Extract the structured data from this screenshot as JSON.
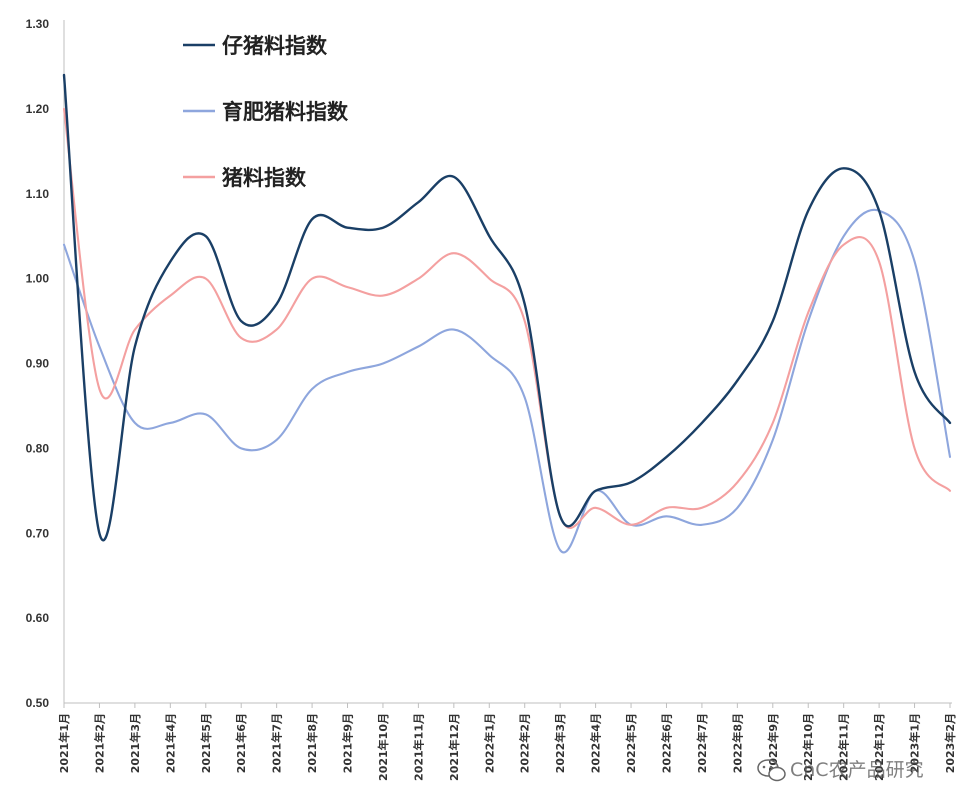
{
  "chart_data": {
    "type": "line",
    "title": "",
    "xlabel": "",
    "ylabel": "",
    "ylim": [
      0.5,
      1.3
    ],
    "yticks": [
      "0.50",
      "0.60",
      "0.70",
      "0.80",
      "0.90",
      "1.00",
      "1.10",
      "1.20",
      "1.30"
    ],
    "grid": false,
    "legend_position": "top-left",
    "categories": [
      "2021年1月",
      "2021年2月",
      "2021年3月",
      "2021年4月",
      "2021年5月",
      "2021年6月",
      "2021年7月",
      "2021年8月",
      "2021年9月",
      "2021年10月",
      "2021年11月",
      "2021年12月",
      "2022年1月",
      "2022年2月",
      "2022年3月",
      "2022年4月",
      "2022年5月",
      "2022年6月",
      "2022年7月",
      "2022年8月",
      "2022年9月",
      "2022年10月",
      "2022年11月",
      "2022年12月",
      "2023年1月",
      "2023年2月"
    ],
    "series": [
      {
        "name": "仔猪料指数",
        "color": "#1a3f66",
        "values": [
          1.24,
          0.7,
          0.92,
          1.02,
          1.05,
          0.95,
          0.97,
          1.07,
          1.06,
          1.06,
          1.09,
          1.12,
          1.05,
          0.97,
          0.72,
          0.75,
          0.76,
          0.79,
          0.83,
          0.88,
          0.95,
          1.08,
          1.13,
          1.08,
          0.89,
          0.83
        ]
      },
      {
        "name": "育肥猪料指数",
        "color": "#8ea6dd",
        "values": [
          1.04,
          0.92,
          0.83,
          0.83,
          0.84,
          0.8,
          0.81,
          0.87,
          0.89,
          0.9,
          0.92,
          0.94,
          0.91,
          0.86,
          0.68,
          0.75,
          0.71,
          0.72,
          0.71,
          0.73,
          0.81,
          0.95,
          1.05,
          1.08,
          1.02,
          0.79
        ]
      },
      {
        "name": "猪料指数",
        "color": "#f4a0a0",
        "values": [
          1.2,
          0.87,
          0.94,
          0.98,
          1.0,
          0.93,
          0.94,
          1.0,
          0.99,
          0.98,
          1.0,
          1.03,
          1.0,
          0.95,
          0.72,
          0.73,
          0.71,
          0.73,
          0.73,
          0.76,
          0.83,
          0.96,
          1.04,
          1.02,
          0.8,
          0.75
        ]
      }
    ]
  },
  "watermark": {
    "text": "CnC农产品研究"
  }
}
